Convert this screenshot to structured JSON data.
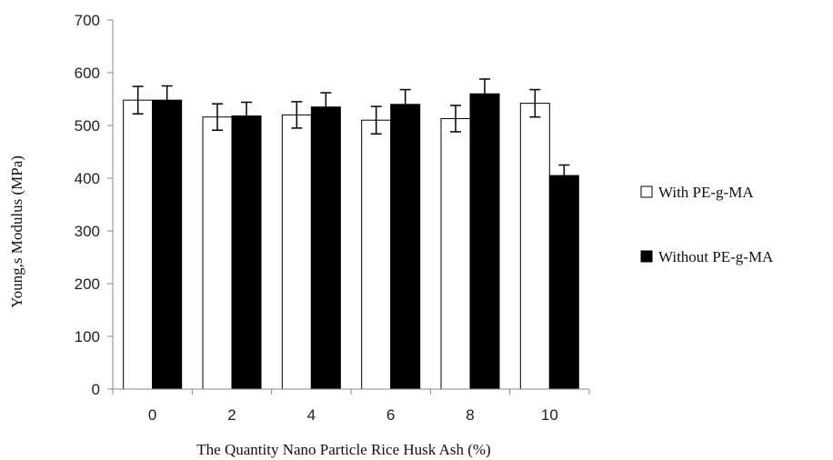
{
  "chart_data": {
    "type": "bar",
    "title": "",
    "xlabel": "The Quantity Nano Particle Rice Husk Ash (%)",
    "ylabel": "Young,s Modulus (MPa)",
    "categories": [
      "0",
      "2",
      "4",
      "6",
      "8",
      "10"
    ],
    "yticks": [
      "0",
      "100",
      "200",
      "300",
      "400",
      "500",
      "600",
      "700"
    ],
    "ylim": [
      0,
      700
    ],
    "grid": false,
    "legend_position": "right",
    "series": [
      {
        "name": "With PE-g-MA",
        "color": "#ffffff",
        "values": [
          548,
          516,
          520,
          510,
          513,
          542
        ],
        "errors": [
          26,
          25,
          25,
          26,
          25,
          26
        ]
      },
      {
        "name": "Without PE-g-MA",
        "color": "#000000",
        "values": [
          548,
          518,
          535,
          540,
          560,
          405
        ],
        "errors": [
          27,
          26,
          27,
          28,
          28,
          20
        ]
      }
    ]
  }
}
